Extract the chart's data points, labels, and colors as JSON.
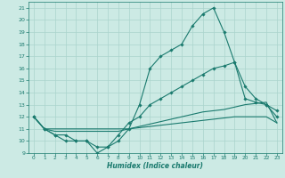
{
  "xlabel": "Humidex (Indice chaleur)",
  "x": [
    0,
    1,
    2,
    3,
    4,
    5,
    6,
    7,
    8,
    9,
    10,
    11,
    12,
    13,
    14,
    15,
    16,
    17,
    18,
    19,
    20,
    21,
    22,
    23
  ],
  "line1_y": [
    12,
    11,
    10.5,
    10,
    10,
    10,
    9,
    9.5,
    10,
    11,
    13,
    16,
    17,
    17.5,
    18,
    19.5,
    20.5,
    21,
    19,
    16.5,
    14.5,
    13.5,
    13,
    12.5
  ],
  "line2_y": [
    12,
    11,
    10.5,
    10.5,
    10,
    10,
    9.5,
    9.5,
    10.5,
    11.5,
    12,
    13,
    13.5,
    14,
    14.5,
    15,
    15.5,
    16,
    16.2,
    16.5,
    13.5,
    13.2,
    13,
    12
  ],
  "line3_y": [
    12,
    11,
    10.8,
    10.8,
    10.8,
    10.8,
    10.8,
    10.8,
    10.8,
    11,
    11.2,
    11.4,
    11.6,
    11.8,
    12.0,
    12.2,
    12.4,
    12.5,
    12.6,
    12.8,
    13.0,
    13.1,
    13.2,
    11.5
  ],
  "line4_y": [
    12,
    11,
    11,
    11,
    11,
    11,
    11,
    11,
    11,
    11,
    11.1,
    11.2,
    11.3,
    11.4,
    11.5,
    11.6,
    11.7,
    11.8,
    11.9,
    12.0,
    12.0,
    12.0,
    12.0,
    11.5
  ],
  "color": "#1a7a6e",
  "bg_color": "#cceae4",
  "grid_color": "#aad4cc",
  "xlim": [
    -0.5,
    23.5
  ],
  "ylim": [
    9,
    21.5
  ],
  "yticks": [
    9,
    10,
    11,
    12,
    13,
    14,
    15,
    16,
    17,
    18,
    19,
    20,
    21
  ],
  "xticks": [
    0,
    1,
    2,
    3,
    4,
    5,
    6,
    7,
    8,
    9,
    10,
    11,
    12,
    13,
    14,
    15,
    16,
    17,
    18,
    19,
    20,
    21,
    22,
    23
  ]
}
